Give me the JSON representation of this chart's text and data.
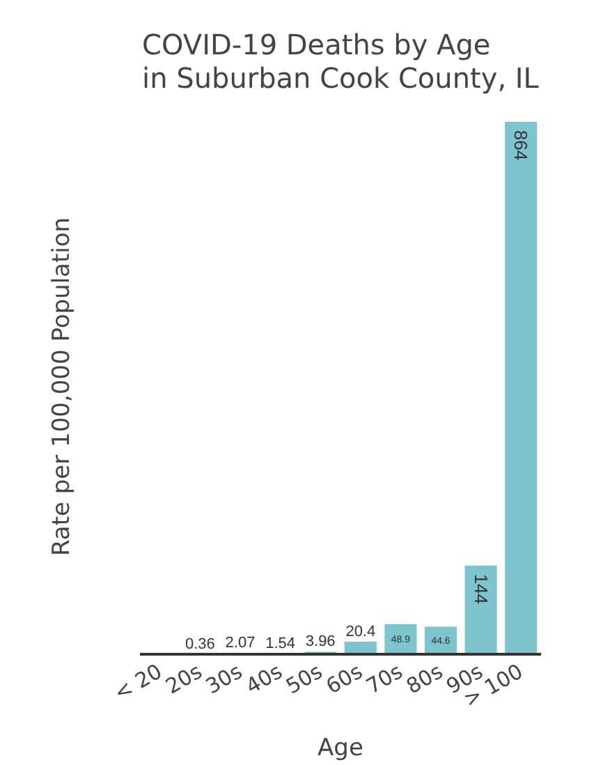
{
  "chart_data": {
    "type": "bar",
    "title": "COVID-19 Deaths by Age\nin Suburban Cook County, IL",
    "xlabel": "Age",
    "ylabel": "Rate per 100,000 Population",
    "categories": [
      "< 20",
      "20s",
      "30s",
      "40s",
      "50s",
      "60s",
      "70s",
      "80s",
      "90s",
      "> 100"
    ],
    "values": [
      0,
      0.36,
      2.07,
      1.54,
      3.96,
      20.4,
      48.9,
      44.6,
      144,
      864
    ],
    "value_labels": [
      null,
      "0.36",
      "2.07",
      "1.54",
      "3.96",
      "20.4",
      "48.9",
      "44.6",
      "144",
      "864"
    ],
    "color": "#7ec4cf",
    "grid": false,
    "tick_labels": "x"
  }
}
